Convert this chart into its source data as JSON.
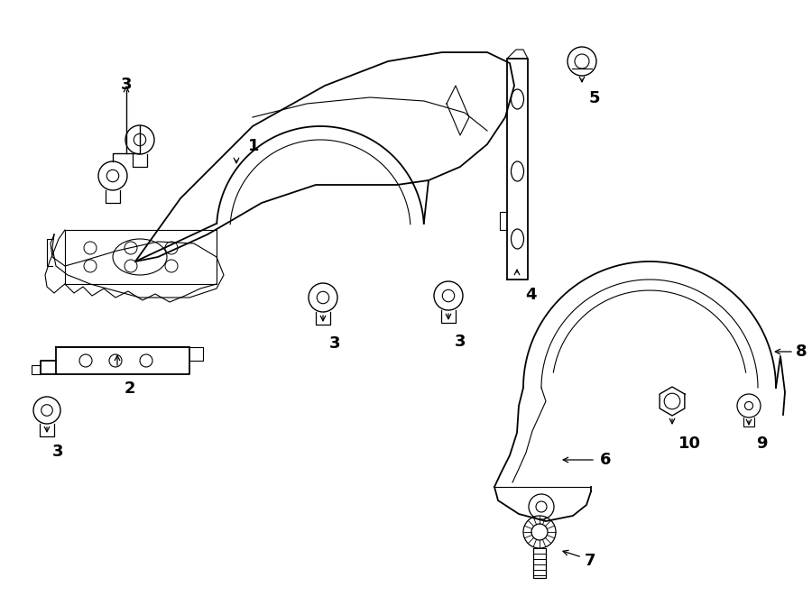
{
  "bg_color": "#ffffff",
  "line_color": "#000000",
  "text_color": "#000000",
  "fig_width": 9.0,
  "fig_height": 6.61,
  "lw_main": 1.3,
  "lw_thin": 0.8,
  "label_fontsize": 13
}
